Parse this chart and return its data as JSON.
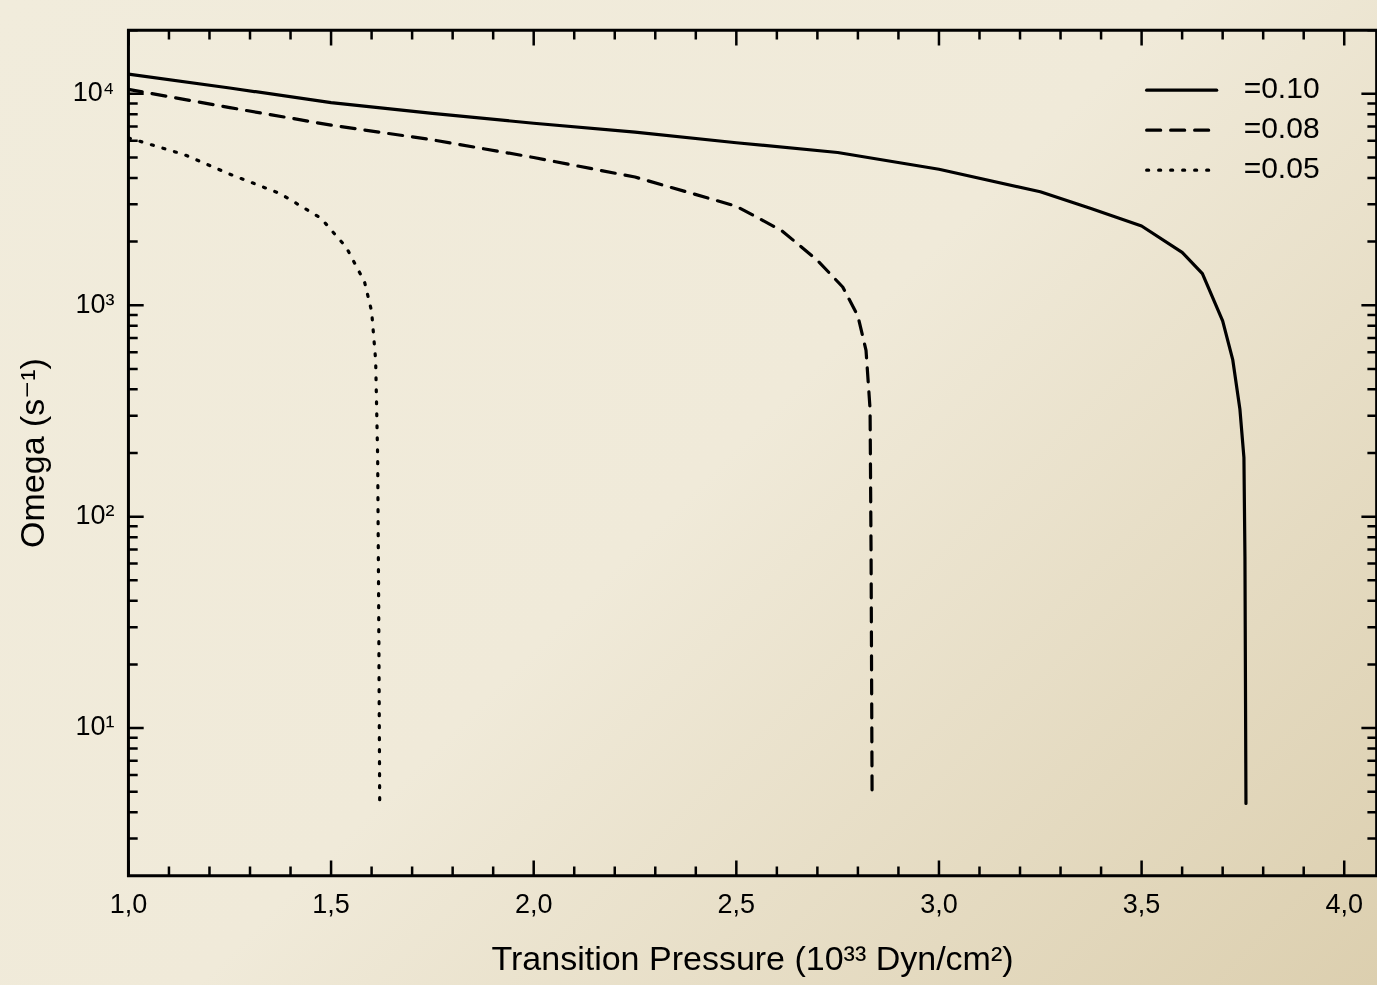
{
  "chart_data": {
    "type": "line",
    "xlabel": "Transition Pressure (10³³ Dyn/cm²)",
    "ylabel": "Omega (s⁻¹)",
    "log": "y",
    "grid": false,
    "legend": "top right",
    "marker": "none",
    "xlim": [
      1,
      4.08
    ],
    "ylim": [
      2,
      20000
    ],
    "xticks": [
      {
        "value": 1,
        "label": "1,0"
      },
      {
        "value": 1.1,
        "label": null
      },
      {
        "value": 1.2,
        "label": null
      },
      {
        "value": 1.3,
        "label": null
      },
      {
        "value": 1.4,
        "label": null
      },
      {
        "value": 1.5,
        "label": "1,5"
      },
      {
        "value": 1.6,
        "label": null
      },
      {
        "value": 1.7,
        "label": null
      },
      {
        "value": 1.8,
        "label": null
      },
      {
        "value": 1.9,
        "label": null
      },
      {
        "value": 2,
        "label": "2,0"
      },
      {
        "value": 2.1,
        "label": null
      },
      {
        "value": 2.2,
        "label": null
      },
      {
        "value": 2.3,
        "label": null
      },
      {
        "value": 2.4,
        "label": null
      },
      {
        "value": 2.5,
        "label": "2,5"
      },
      {
        "value": 2.6,
        "label": null
      },
      {
        "value": 2.7,
        "label": null
      },
      {
        "value": 2.8,
        "label": null
      },
      {
        "value": 2.9,
        "label": null
      },
      {
        "value": 3,
        "label": "3,0"
      },
      {
        "value": 3.1,
        "label": null
      },
      {
        "value": 3.2,
        "label": null
      },
      {
        "value": 3.3,
        "label": null
      },
      {
        "value": 3.4,
        "label": null
      },
      {
        "value": 3.5,
        "label": "3,5"
      },
      {
        "value": 3.6,
        "label": null
      },
      {
        "value": 3.7,
        "label": null
      },
      {
        "value": 3.8,
        "label": null
      },
      {
        "value": 3.9,
        "label": null
      },
      {
        "value": 4,
        "label": "4,0"
      }
    ],
    "yticks": [
      {
        "value": 3,
        "label": null
      },
      {
        "value": 4,
        "label": null
      },
      {
        "value": 5,
        "label": null
      },
      {
        "value": 6,
        "label": null
      },
      {
        "value": 7,
        "label": null
      },
      {
        "value": 8,
        "label": null
      },
      {
        "value": 9,
        "label": null
      },
      {
        "value": 10,
        "label": "10¹"
      },
      {
        "value": 20,
        "label": null
      },
      {
        "value": 30,
        "label": null
      },
      {
        "value": 40,
        "label": null
      },
      {
        "value": 50,
        "label": null
      },
      {
        "value": 60,
        "label": null
      },
      {
        "value": 70,
        "label": null
      },
      {
        "value": 80,
        "label": null
      },
      {
        "value": 90,
        "label": null
      },
      {
        "value": 100,
        "label": "10²"
      },
      {
        "value": 200,
        "label": null
      },
      {
        "value": 300,
        "label": null
      },
      {
        "value": 400,
        "label": null
      },
      {
        "value": 500,
        "label": null
      },
      {
        "value": 600,
        "label": null
      },
      {
        "value": 700,
        "label": null
      },
      {
        "value": 800,
        "label": null
      },
      {
        "value": 900,
        "label": null
      },
      {
        "value": 1000,
        "label": "10³"
      },
      {
        "value": 2000,
        "label": null
      },
      {
        "value": 3000,
        "label": null
      },
      {
        "value": 4000,
        "label": null
      },
      {
        "value": 5000,
        "label": null
      },
      {
        "value": 6000,
        "label": null
      },
      {
        "value": 7000,
        "label": null
      },
      {
        "value": 8000,
        "label": null
      },
      {
        "value": 9000,
        "label": null
      },
      {
        "value": 10000,
        "label": "10⁴"
      },
      {
        "value": 20000,
        "label": null
      }
    ],
    "series": [
      {
        "name": "=0.10",
        "color": "#000000",
        "line_style": "solid",
        "x": [
          1,
          1.25,
          1.5,
          1.75,
          2,
          2.25,
          2.5,
          2.75,
          3,
          3.25,
          3.375,
          3.5,
          3.6,
          3.65,
          3.7,
          3.725,
          3.7425,
          3.7525,
          3.755,
          3.7575
        ],
        "values": [
          12400,
          10660,
          9090,
          8080,
          7260,
          6590,
          5870,
          5280,
          4400,
          3440,
          2870,
          2370,
          1780,
          1410,
          843,
          551,
          323,
          190,
          65,
          4.4
        ]
      },
      {
        "name": "=0.08",
        "color": "#000000",
        "line_style": "dashed",
        "x": [
          1,
          1.25,
          1.5,
          1.75,
          2,
          2.25,
          2.5,
          2.6125,
          2.7,
          2.7625,
          2.8,
          2.82,
          2.83,
          2.8325,
          2.835
        ],
        "values": [
          10500,
          8610,
          7110,
          6060,
          5000,
          4040,
          2940,
          2250,
          1630,
          1220,
          889,
          612,
          323,
          65,
          4.8
        ]
      },
      {
        "name": "=0.05",
        "color": "#000000",
        "line_style": "dotted",
        "x": [
          1,
          1.1375,
          1.25,
          1.375,
          1.475,
          1.5375,
          1.5825,
          1.6,
          1.61,
          1.615,
          1.6175,
          1.62
        ],
        "values": [
          6190,
          5160,
          4170,
          3370,
          2580,
          1880,
          1290,
          938,
          551,
          190,
          38,
          4.5
        ]
      }
    ]
  }
}
